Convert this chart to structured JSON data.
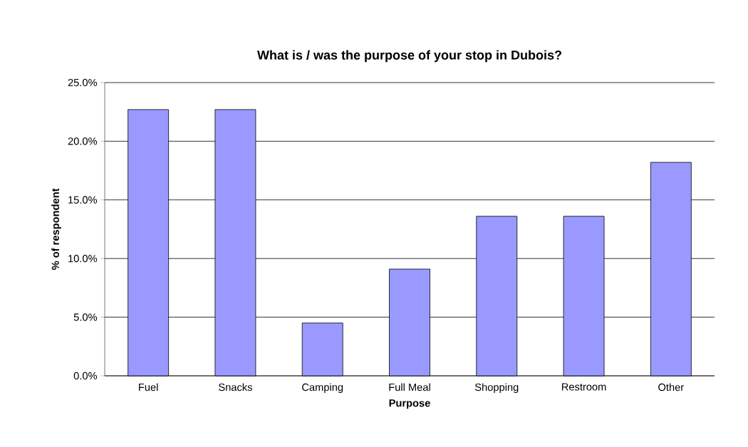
{
  "chart_data": {
    "type": "bar",
    "title": "What is / was the purpose of your stop in Dubois?",
    "xlabel": "Purpose",
    "ylabel": "% of respondent",
    "categories": [
      "Fuel",
      "Snacks",
      "Camping",
      "Full Meal",
      "Shopping",
      "Restroom",
      "Other"
    ],
    "values": [
      22.7,
      22.7,
      4.5,
      9.1,
      13.6,
      13.6,
      18.2
    ],
    "color": "#9999ff",
    "ylim": [
      0,
      25
    ],
    "yticks": [
      {
        "value": 0,
        "label": "0.0%"
      },
      {
        "value": 5,
        "label": "5.0%"
      },
      {
        "value": 10,
        "label": "10.0%"
      },
      {
        "value": 15,
        "label": "15.0%"
      },
      {
        "value": 20,
        "label": "20.0%"
      },
      {
        "value": 25,
        "label": "25.0%"
      }
    ],
    "grid": "y"
  }
}
